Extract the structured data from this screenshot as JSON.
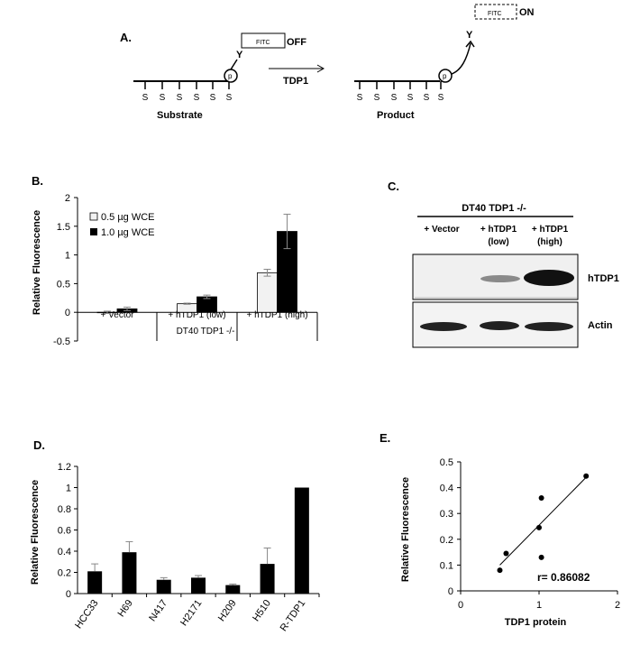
{
  "panel_a": {
    "label": "A.",
    "fitc_left": "FITC",
    "off_label": "OFF",
    "fitc_right": "FITC",
    "on_label": "ON",
    "arrow_label": "TDP1",
    "substrate_label": "Substrate",
    "product_label": "Product",
    "s_letters": [
      "S",
      "S",
      "S",
      "S",
      "S",
      "S"
    ],
    "p_label": "p",
    "y_label": "Y"
  },
  "panel_b": {
    "label": "B.",
    "ylabel": "Relative Fluorescence",
    "yticks": [
      "2",
      "1.5",
      "1",
      "0.5",
      "0",
      "-0.5"
    ],
    "legend": [
      "0.5 µg WCE",
      "1.0 µg WCE"
    ],
    "group_title": "DT40 TDP1 -/-"
  },
  "panel_c": {
    "label": "C.",
    "title": "DT40 TDP1 -/-",
    "lanes": [
      {
        "line1": "+ Vector",
        "line2": ""
      },
      {
        "line1": "+ hTDP1",
        "line2": "(low)"
      },
      {
        "line1": "+ hTDP1",
        "line2": "(high)"
      }
    ],
    "blot_labels": [
      "hTDP1",
      "Actin"
    ]
  },
  "panel_d": {
    "label": "D.",
    "ylabel": "Relative Fluorescence",
    "yticks": [
      "1.2",
      "1",
      "0.8",
      "0.6",
      "0.4",
      "0.2",
      "0"
    ]
  },
  "panel_e": {
    "label": "E.",
    "ylabel": "Relative Fluorescence",
    "xlabel": "TDP1 protein",
    "yticks": [
      "0.5",
      "0.4",
      "0.3",
      "0.2",
      "0.1",
      "0"
    ],
    "xticks": [
      "0",
      "1",
      "2"
    ],
    "r_label": "r= 0.86082"
  },
  "chart_data": [
    {
      "type": "bar",
      "panel": "B",
      "categories": [
        "+ Vector",
        "+ hTDP1 (low)",
        "+ hTDP1 (high)"
      ],
      "series": [
        {
          "name": "0.5 µg WCE",
          "values": [
            0.0,
            0.15,
            0.69
          ],
          "errors": [
            0.02,
            0.01,
            0.06
          ],
          "color": "#f2f2f2"
        },
        {
          "name": "1.0 µg WCE",
          "values": [
            0.06,
            0.27,
            1.41
          ],
          "errors": [
            0.03,
            0.03,
            0.3
          ],
          "color": "#000000"
        }
      ],
      "ylabel": "Relative Fluorescence",
      "ylim": [
        -0.5,
        2
      ],
      "legend": "top-left"
    },
    {
      "type": "bar",
      "panel": "D",
      "categories": [
        "HCC33",
        "H69",
        "N417",
        "H2171",
        "H209",
        "H510",
        "R-TDP1"
      ],
      "values": [
        0.21,
        0.39,
        0.13,
        0.15,
        0.08,
        0.28,
        1.0
      ],
      "errors": [
        0.07,
        0.1,
        0.02,
        0.02,
        0.01,
        0.15,
        0.0
      ],
      "ylabel": "Relative Fluorescence",
      "ylim": [
        0,
        1.2
      ]
    },
    {
      "type": "scatter",
      "panel": "E",
      "x": [
        0.5,
        0.58,
        1.0,
        1.03,
        1.03,
        1.6
      ],
      "y": [
        0.08,
        0.145,
        0.245,
        0.36,
        0.13,
        0.445
      ],
      "fit": {
        "x": [
          0.5,
          1.6
        ],
        "y": [
          0.1,
          0.44
        ]
      },
      "xlabel": "TDP1 protein",
      "ylabel": "Relative Fluorescence",
      "xlim": [
        0,
        2
      ],
      "ylim": [
        0,
        0.5
      ]
    }
  ]
}
